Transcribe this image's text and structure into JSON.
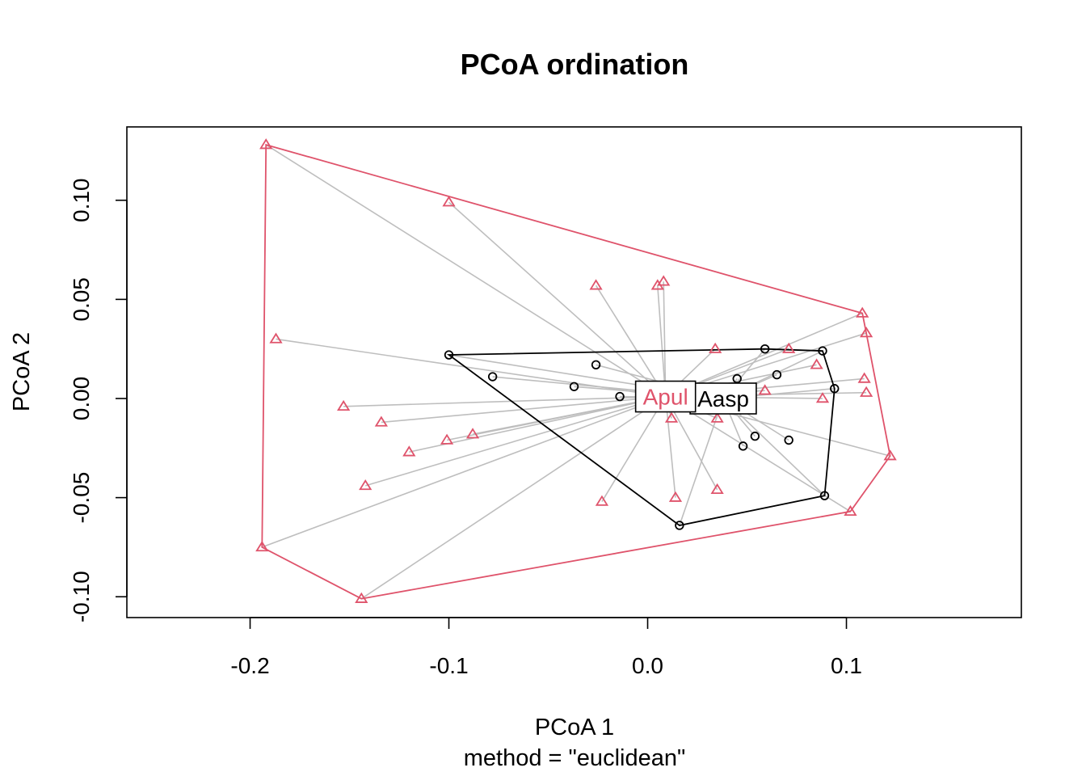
{
  "chart_data": {
    "type": "scatter",
    "title": "PCoA ordination",
    "xlabel": "PCoA 1",
    "ylabel": "PCoA 2",
    "subtitle": "method = \"euclidean\"",
    "xlim": [
      -0.262,
      0.188
    ],
    "ylim": [
      -0.1105,
      0.137
    ],
    "xticks": [
      -0.2,
      -0.1,
      0.0,
      0.1
    ],
    "xtick_labels": [
      "-0.2",
      "-0.1",
      "0.0",
      "0.1"
    ],
    "yticks": [
      -0.1,
      -0.05,
      0.0,
      0.05,
      0.1
    ],
    "ytick_labels": [
      "-0.10",
      "-0.05",
      "0.00",
      "0.05",
      "0.10"
    ],
    "spider_color": "#bebebe",
    "series": [
      {
        "name": "Aasp",
        "marker": "circle",
        "color": "#000000",
        "centroid": [
          0.038,
          0.0
        ],
        "points": [
          [
            -0.1,
            0.022
          ],
          [
            -0.078,
            0.011
          ],
          [
            -0.026,
            0.017
          ],
          [
            -0.037,
            0.006
          ],
          [
            -0.014,
            0.001
          ],
          [
            0.045,
            0.01
          ],
          [
            0.059,
            0.025
          ],
          [
            0.065,
            0.012
          ],
          [
            0.088,
            0.024
          ],
          [
            0.094,
            0.005
          ],
          [
            0.071,
            -0.021
          ],
          [
            0.054,
            -0.019
          ],
          [
            0.048,
            -0.024
          ],
          [
            0.089,
            -0.049
          ],
          [
            0.016,
            -0.064
          ]
        ],
        "hull": [
          [
            -0.1,
            0.022
          ],
          [
            0.059,
            0.025
          ],
          [
            0.088,
            0.024
          ],
          [
            0.094,
            0.005
          ],
          [
            0.089,
            -0.049
          ],
          [
            0.016,
            -0.064
          ]
        ]
      },
      {
        "name": "Apul",
        "marker": "triangle",
        "color": "#df536b",
        "centroid": [
          0.009,
          0.001
        ],
        "points": [
          [
            -0.192,
            0.128
          ],
          [
            -0.1,
            0.099
          ],
          [
            -0.026,
            0.057
          ],
          [
            0.005,
            0.057
          ],
          [
            0.008,
            0.059
          ],
          [
            -0.187,
            0.03
          ],
          [
            0.034,
            0.025
          ],
          [
            0.071,
            0.025
          ],
          [
            0.108,
            0.043
          ],
          [
            0.11,
            0.033
          ],
          [
            0.085,
            0.017
          ],
          [
            0.109,
            0.01
          ],
          [
            0.11,
            0.003
          ],
          [
            0.059,
            0.004
          ],
          [
            0.088,
            0.0
          ],
          [
            -0.153,
            -0.004
          ],
          [
            -0.134,
            -0.012
          ],
          [
            0.012,
            -0.01
          ],
          [
            0.035,
            -0.01
          ],
          [
            -0.088,
            -0.018
          ],
          [
            -0.101,
            -0.021
          ],
          [
            -0.12,
            -0.027
          ],
          [
            0.122,
            -0.029
          ],
          [
            -0.142,
            -0.044
          ],
          [
            0.014,
            -0.05
          ],
          [
            0.035,
            -0.046
          ],
          [
            -0.023,
            -0.052
          ],
          [
            0.102,
            -0.057
          ],
          [
            -0.194,
            -0.075
          ],
          [
            -0.144,
            -0.101
          ]
        ],
        "hull": [
          [
            -0.192,
            0.128
          ],
          [
            0.108,
            0.043
          ],
          [
            0.11,
            0.033
          ],
          [
            0.122,
            -0.029
          ],
          [
            0.102,
            -0.057
          ],
          [
            -0.144,
            -0.101
          ],
          [
            -0.194,
            -0.075
          ]
        ]
      }
    ]
  }
}
